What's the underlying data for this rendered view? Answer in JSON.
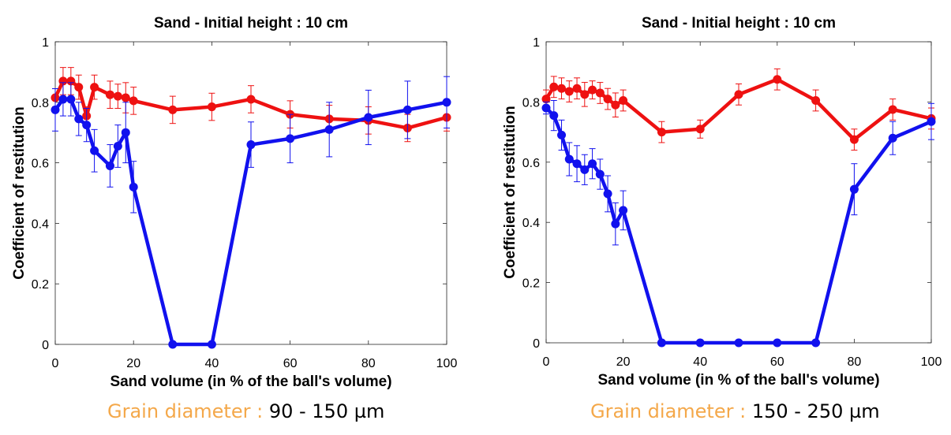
{
  "chart_data": [
    {
      "type": "line",
      "title": "Sand - Initial height : 10 cm",
      "xlabel": "Sand volume (in % of the ball's volume)",
      "ylabel": "Coefficient of restitution",
      "xlim": [
        0,
        100
      ],
      "ylim": [
        0,
        1
      ],
      "xticks": [
        "0",
        "20",
        "40",
        "60",
        "80",
        "100"
      ],
      "yticks": [
        "0",
        "0.2",
        "0.4",
        "0.6",
        "0.8",
        "1"
      ],
      "grid": false,
      "series": [
        {
          "color": "#EE1111",
          "x": [
            0,
            2,
            4,
            6,
            8,
            10,
            14,
            16,
            18,
            20,
            30,
            40,
            50,
            60,
            70,
            80,
            90,
            100
          ],
          "y": [
            0.815,
            0.87,
            0.87,
            0.85,
            0.755,
            0.85,
            0.825,
            0.82,
            0.815,
            0.805,
            0.775,
            0.785,
            0.81,
            0.76,
            0.745,
            0.74,
            0.715,
            0.75
          ],
          "err": [
            0.03,
            0.045,
            0.045,
            0.04,
            0.03,
            0.04,
            0.045,
            0.04,
            0.05,
            0.045,
            0.045,
            0.045,
            0.045,
            0.045,
            0.045,
            0.045,
            0.045,
            0.045
          ]
        },
        {
          "color": "#1111EE",
          "x": [
            0,
            2,
            4,
            6,
            8,
            10,
            14,
            16,
            18,
            20,
            30,
            40,
            50,
            60,
            70,
            80,
            90,
            100
          ],
          "y": [
            0.775,
            0.81,
            0.81,
            0.745,
            0.725,
            0.64,
            0.59,
            0.655,
            0.7,
            0.52,
            0.0,
            0.0,
            0.66,
            0.68,
            0.71,
            0.75,
            0.775,
            0.8
          ],
          "err": [
            0.07,
            0.055,
            0.055,
            0.055,
            0.055,
            0.07,
            0.07,
            0.07,
            0.1,
            0.085,
            0.0,
            0.0,
            0.075,
            0.08,
            0.09,
            0.09,
            0.095,
            0.085
          ]
        }
      ]
    },
    {
      "type": "line",
      "title": "Sand - Initial height : 10 cm",
      "xlabel": "Sand volume (in % of the ball's volume)",
      "ylabel": "Coefficient of restitution",
      "xlim": [
        0,
        100
      ],
      "ylim": [
        0,
        1
      ],
      "xticks": [
        "0",
        "20",
        "40",
        "60",
        "80",
        "100"
      ],
      "yticks": [
        "0",
        "0.2",
        "0.4",
        "0.6",
        "0.8",
        "1"
      ],
      "grid": false,
      "series": [
        {
          "color": "#EE1111",
          "x": [
            0,
            2,
            4,
            6,
            8,
            10,
            12,
            14,
            16,
            18,
            20,
            30,
            40,
            50,
            60,
            70,
            80,
            90,
            100
          ],
          "y": [
            0.81,
            0.85,
            0.845,
            0.835,
            0.845,
            0.825,
            0.84,
            0.83,
            0.81,
            0.79,
            0.805,
            0.7,
            0.71,
            0.825,
            0.875,
            0.805,
            0.675,
            0.775,
            0.745
          ],
          "err": [
            0.03,
            0.035,
            0.035,
            0.035,
            0.035,
            0.04,
            0.03,
            0.035,
            0.035,
            0.04,
            0.035,
            0.035,
            0.03,
            0.035,
            0.035,
            0.035,
            0.035,
            0.035,
            0.035
          ]
        },
        {
          "color": "#1111EE",
          "x": [
            0,
            2,
            4,
            6,
            8,
            10,
            12,
            14,
            16,
            18,
            20,
            30,
            40,
            50,
            60,
            70,
            80,
            90,
            100
          ],
          "y": [
            0.78,
            0.755,
            0.69,
            0.61,
            0.595,
            0.575,
            0.595,
            0.56,
            0.495,
            0.395,
            0.44,
            0.0,
            0.0,
            0.0,
            0.0,
            0.0,
            0.51,
            0.68,
            0.735
          ],
          "err": [
            0.02,
            0.05,
            0.05,
            0.055,
            0.06,
            0.05,
            0.05,
            0.05,
            0.06,
            0.07,
            0.065,
            0.0,
            0.0,
            0.0,
            0.0,
            0.0,
            0.085,
            0.055,
            0.06
          ]
        }
      ]
    }
  ],
  "captions": [
    {
      "label": "Grain diameter : ",
      "value": "90 - 150 µm"
    },
    {
      "label": "Grain diameter : ",
      "value": "150 - 250 µm"
    }
  ]
}
